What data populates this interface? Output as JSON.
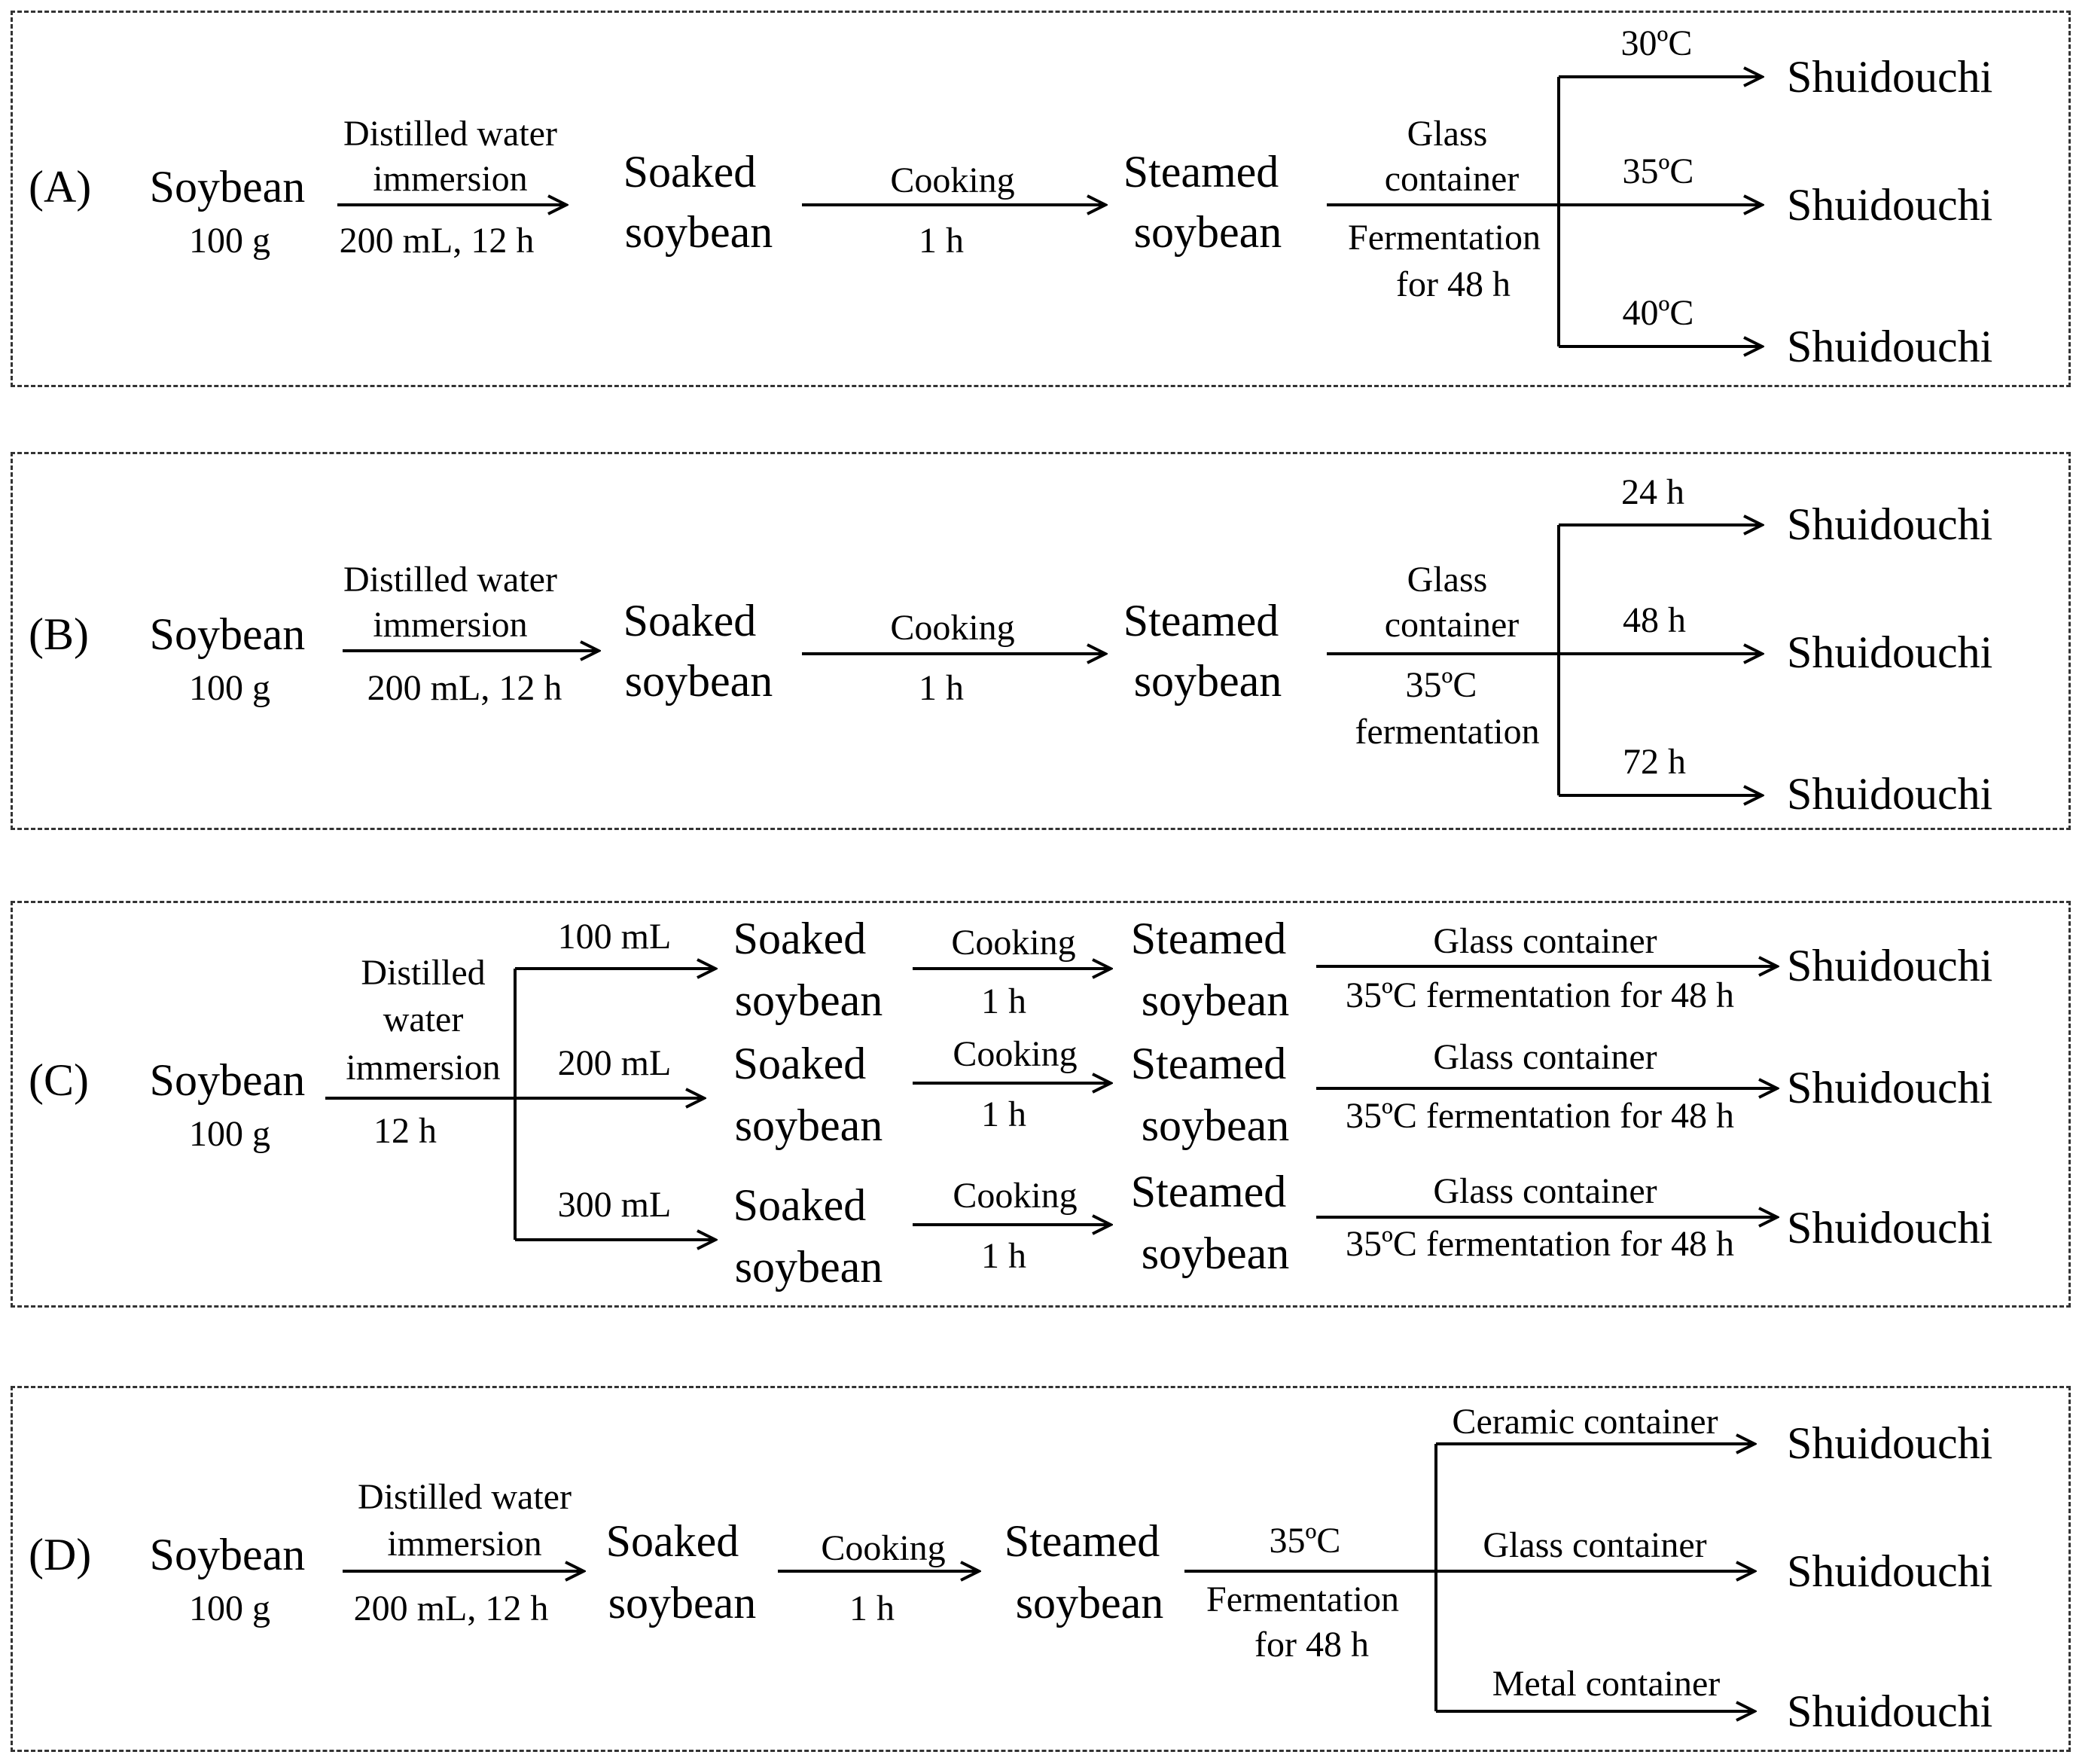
{
  "panels": {
    "A": {
      "label": "(A)",
      "input": "Soybean",
      "input_amount": "100 g",
      "step1_top_1": "Distilled  water",
      "step1_top_2": "immersion",
      "step1_bottom": "200 mL, 12 h",
      "soaked_1": "Soaked",
      "soaked_2": "soybean",
      "step2_top": "Cooking",
      "step2_bottom": "1 h",
      "steamed_1": "Steamed",
      "steamed_2": "soybean",
      "step3_top_1": "Glass",
      "step3_top_2": "container",
      "step3_bottom_1": "Fermentation",
      "step3_bottom_2": "for 48  h",
      "branches": [
        "30ºC",
        "35ºC",
        "40ºC"
      ],
      "output": "Shuidouchi"
    },
    "B": {
      "label": "(B)",
      "input": "Soybean",
      "input_amount": "100 g",
      "step1_top_1": "Distilled  water",
      "step1_top_2": "immersion",
      "step1_bottom": "200  mL, 12 h",
      "soaked_1": "Soaked",
      "soaked_2": "soybean",
      "step2_top": "Cooking",
      "step2_bottom": "1 h",
      "steamed_1": "Steamed",
      "steamed_2": "soybean",
      "step3_top_1": "Glass",
      "step3_top_2": "container",
      "step3_bottom_1": "35ºC",
      "step3_bottom_2": "fermentation",
      "branches": [
        "24 h",
        "48 h",
        "72 h"
      ],
      "output": "Shuidouchi"
    },
    "C": {
      "label": "(C)",
      "input": "Soybean",
      "input_amount": "100 g",
      "step1_top_1": "Distilled",
      "step1_top_2": "water",
      "step1_top_3": "immersion",
      "step1_bottom": "12 h",
      "branches": [
        "100  mL",
        "200  mL",
        "300  mL"
      ],
      "soaked_1": "Soaked",
      "soaked_2": "soybean",
      "step2_top": "Cooking",
      "step2_bottom": "1 h",
      "steamed_1": "Steamed",
      "steamed_2": "soybean",
      "step3_top": "Glass container",
      "step3_bottom": "35ºC fermentation  for 48 h",
      "output": "Shuidouchi"
    },
    "D": {
      "label": "(D)",
      "input": "Soybean",
      "input_amount": "100 g",
      "step1_top_1": "Distilled  water",
      "step1_top_2": "immersion",
      "step1_bottom": "200 mL, 12 h",
      "soaked_1": "Soaked",
      "soaked_2": "soybean",
      "step2_top": "Cooking",
      "step2_bottom": "1 h",
      "steamed_1": "Steamed",
      "steamed_2": "soybean",
      "step3_top": "35ºC",
      "step3_bottom_1": "Fermentation",
      "step3_bottom_2": "for 48  h",
      "branches": [
        "Ceramic container",
        "Glass container",
        "Metal container"
      ],
      "output": "Shuidouchi"
    }
  }
}
